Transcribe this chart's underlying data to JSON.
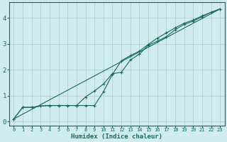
{
  "xlabel": "Humidex (Indice chaleur)",
  "bg_color": "#d0ecec",
  "grid_color": "#b0d0d0",
  "line_color": "#1a6860",
  "xlim": [
    -0.5,
    23.5
  ],
  "ylim": [
    -0.15,
    4.6
  ],
  "x_ticks": [
    0,
    1,
    2,
    3,
    4,
    5,
    6,
    7,
    8,
    9,
    10,
    11,
    12,
    13,
    14,
    15,
    16,
    17,
    18,
    19,
    20,
    21,
    22,
    23
  ],
  "y_ticks": [
    0,
    1,
    2,
    3,
    4
  ],
  "line1_x": [
    0,
    1,
    2,
    3,
    4,
    5,
    6,
    7,
    8,
    9,
    10,
    11,
    12,
    13,
    14,
    15,
    16,
    17,
    18,
    19,
    20,
    21,
    22,
    23
  ],
  "line1_y": [
    0.1,
    0.55,
    0.55,
    0.6,
    0.62,
    0.62,
    0.62,
    0.62,
    0.95,
    1.18,
    1.45,
    1.85,
    1.9,
    2.38,
    2.6,
    2.95,
    3.1,
    3.28,
    3.55,
    3.75,
    3.88,
    4.05,
    4.22,
    4.35
  ],
  "line2_x": [
    0,
    1,
    2,
    3,
    4,
    5,
    6,
    7,
    8,
    9,
    10,
    11,
    12,
    13,
    14,
    15,
    16,
    17,
    18,
    19,
    20,
    21,
    22,
    23
  ],
  "line2_y": [
    0.1,
    0.55,
    0.55,
    0.6,
    0.62,
    0.62,
    0.62,
    0.62,
    0.62,
    0.62,
    1.15,
    1.82,
    2.35,
    2.55,
    2.72,
    2.98,
    3.22,
    3.42,
    3.62,
    3.8,
    3.92,
    4.08,
    4.22,
    4.35
  ],
  "line3_x": [
    0,
    23
  ],
  "line3_y": [
    0.1,
    4.35
  ]
}
